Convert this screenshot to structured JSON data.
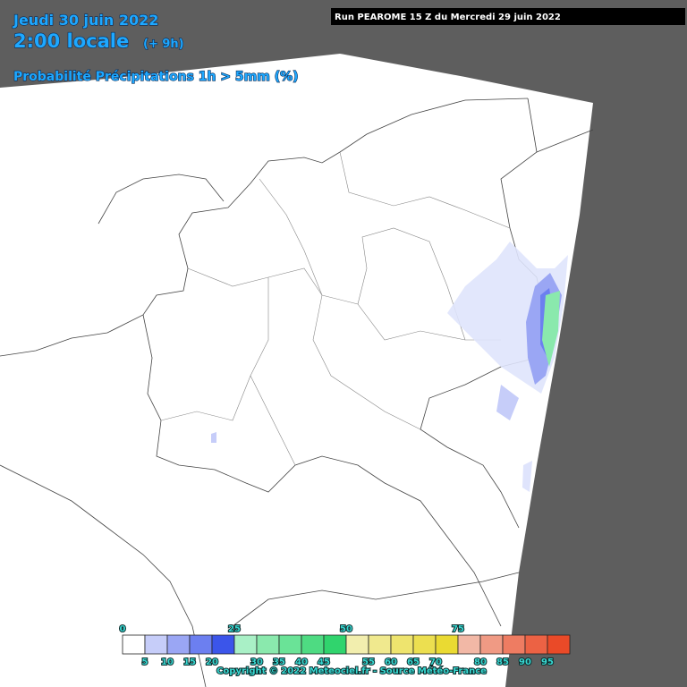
{
  "header": {
    "date": "Jeudi 30 juin 2022",
    "time": "2:00 locale",
    "offset": "(+ 9h)",
    "run": "Run PEAROME 15 Z du Mercredi 29 juin 2022",
    "product": "Probabilité Précipitations 1h > 5mm (%)"
  },
  "legend": {
    "top_ticks": [
      0,
      25,
      50,
      75
    ],
    "bottom_ticks": [
      5,
      10,
      15,
      20,
      30,
      35,
      40,
      45,
      55,
      60,
      65,
      70,
      80,
      85,
      90,
      95
    ],
    "colors": [
      "#ffffff",
      "#c6cdf9",
      "#9aa6f4",
      "#6c7ff0",
      "#3b55ea",
      "#a9f0c6",
      "#8ae9ad",
      "#6ae397",
      "#4edb82",
      "#30d46d",
      "#f2eeae",
      "#f0e98e",
      "#eee46e",
      "#ecdf50",
      "#eada32",
      "#f2b8a6",
      "#f09a84",
      "#ee7c62",
      "#ec6244",
      "#ea4a28"
    ]
  },
  "footer": {
    "copyright": "Copyright © 2022 Meteociel.fr - Source Météo-France"
  }
}
